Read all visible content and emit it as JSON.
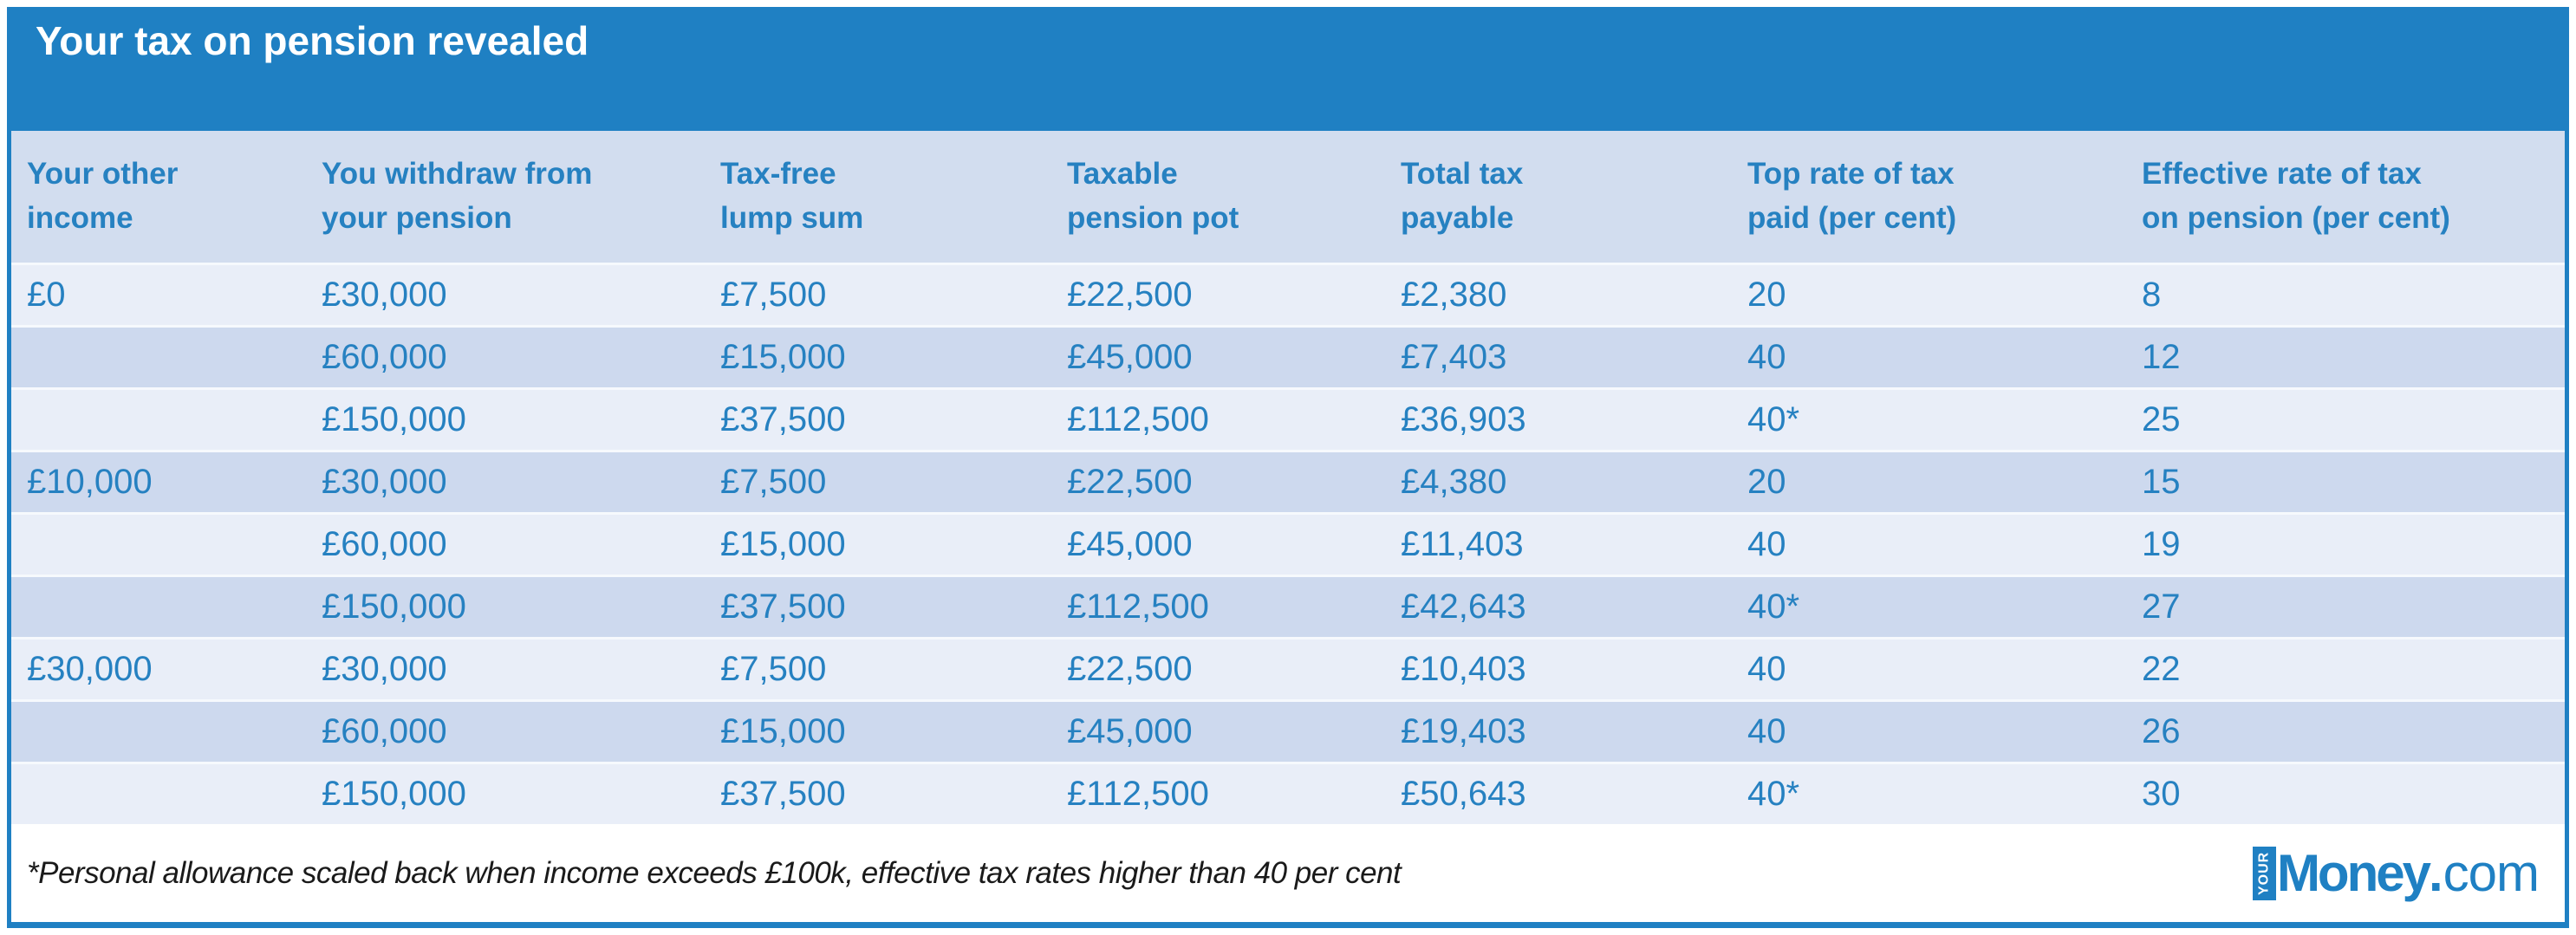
{
  "title": "Your tax on pension revealed",
  "table": {
    "columns": [
      "Your other\nincome",
      "You withdraw from\nyour pension",
      "Tax-free\nlump sum",
      "Taxable\npension pot",
      "Total tax\npayable",
      "Top rate of tax\npaid (per cent)",
      "Effective rate of tax\non pension (per cent)"
    ],
    "rows": [
      [
        "£0",
        "£30,000",
        "£7,500",
        "£22,500",
        "£2,380",
        "20",
        "8"
      ],
      [
        "",
        "£60,000",
        "£15,000",
        "£45,000",
        "£7,403",
        "40",
        "12"
      ],
      [
        "",
        "£150,000",
        "£37,500",
        "£112,500",
        "£36,903",
        "40*",
        "25"
      ],
      [
        "£10,000",
        "£30,000",
        "£7,500",
        "£22,500",
        "£4,380",
        "20",
        "15"
      ],
      [
        "",
        "£60,000",
        "£15,000",
        "£45,000",
        "£11,403",
        "40",
        "19"
      ],
      [
        "",
        "£150,000",
        "£37,500",
        "£112,500",
        "£42,643",
        "40*",
        "27"
      ],
      [
        "£30,000",
        "£30,000",
        "£7,500",
        "£22,500",
        "£10,403",
        "40",
        "22"
      ],
      [
        "",
        "£60,000",
        "£15,000",
        "£45,000",
        "£19,403",
        "40",
        "26"
      ],
      [
        "",
        "£150,000",
        "£37,500",
        "£112,500",
        "£50,643",
        "40*",
        "30"
      ]
    ]
  },
  "footnote": "*Personal allowance scaled back when income exceeds £100k, effective tax rates higher than 40 per cent",
  "logo": {
    "vertical_text": "YOUR",
    "brand": "Money",
    "dot": ".",
    "tld": "com"
  },
  "colors": {
    "accent_blue": "#1f80c3",
    "header_row_bg": "#d2ddef",
    "row_light_bg": "#e9eef8",
    "row_dark_bg": "#cdd9ee",
    "cell_text": "#2681c1",
    "footnote_text": "#1a1a1a"
  }
}
